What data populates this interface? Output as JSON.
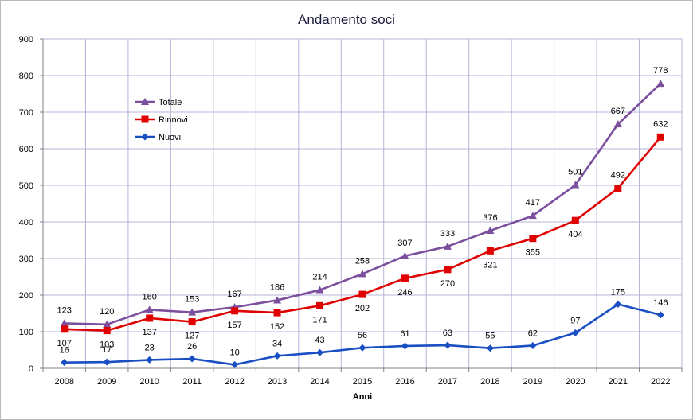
{
  "chart_data": {
    "type": "line",
    "title": "Andamento soci",
    "xlabel": "Anni",
    "ylabel": "",
    "ylim": [
      0,
      900
    ],
    "yticks": [
      0,
      100,
      200,
      300,
      400,
      500,
      600,
      700,
      800,
      900
    ],
    "grid": true,
    "legend_position": "top-left",
    "categories": [
      "2008",
      "2009",
      "2010",
      "2011",
      "2012",
      "2013",
      "2014",
      "2015",
      "2016",
      "2017",
      "2018",
      "2019",
      "2020",
      "2021",
      "2022"
    ],
    "series": [
      {
        "name": "Totale",
        "color": "#7b4f9d",
        "marker": "triangle",
        "values": [
          123,
          120,
          160,
          153,
          167,
          186,
          214,
          258,
          307,
          333,
          376,
          417,
          501,
          667,
          778
        ]
      },
      {
        "name": "Rinnovi",
        "color": "#e00000",
        "marker": "square",
        "values": [
          107,
          103,
          137,
          127,
          157,
          152,
          171,
          202,
          246,
          270,
          321,
          355,
          404,
          492,
          632
        ]
      },
      {
        "name": "Nuovi",
        "color": "#1a4fc4",
        "marker": "diamond",
        "values": [
          16,
          17,
          23,
          26,
          10,
          34,
          43,
          56,
          61,
          63,
          55,
          62,
          97,
          175,
          146
        ]
      }
    ]
  }
}
